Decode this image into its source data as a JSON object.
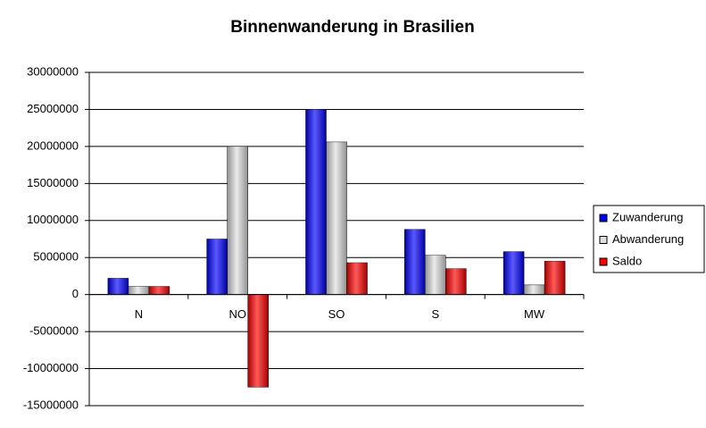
{
  "chart_data": {
    "type": "bar",
    "title": "Binnenwanderung in Brasilien",
    "categories": [
      "N",
      "NO",
      "SO",
      "S",
      "MW"
    ],
    "series": [
      {
        "name": "Zuwanderung",
        "color": "#0000ff",
        "values": [
          2200000,
          7500000,
          25000000,
          8800000,
          5800000
        ]
      },
      {
        "name": "Abwanderung",
        "color": "#e0e0e0",
        "values": [
          1100000,
          20000000,
          20600000,
          5300000,
          1300000
        ]
      },
      {
        "name": "Saldo",
        "color": "#ff0000",
        "values": [
          1100000,
          -12500000,
          4300000,
          3500000,
          4500000
        ]
      }
    ],
    "ylim": [
      -15000000,
      30000000
    ],
    "yticks": [
      -15000000,
      -10000000,
      -5000000,
      0,
      5000000,
      10000000,
      15000000,
      20000000,
      25000000,
      30000000
    ],
    "grid": true,
    "legend": "right"
  }
}
